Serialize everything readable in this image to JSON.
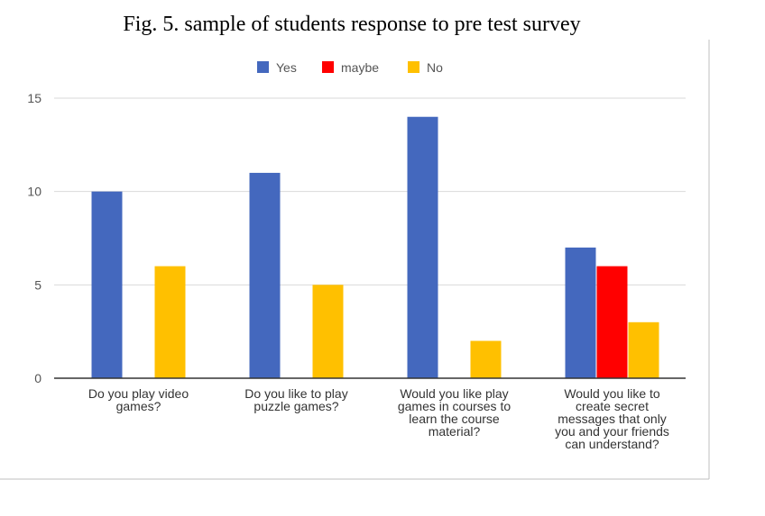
{
  "caption": "Fig. 5.  sample of students response to pre test survey",
  "colors": {
    "Yes": "#4468be",
    "maybe": "#ff0000",
    "No": "#ffc000",
    "grid": "#d9d9d9",
    "axis": "#333333"
  },
  "chart_data": {
    "type": "bar",
    "title": "",
    "xlabel": "",
    "ylabel": "",
    "ylim": [
      0,
      15
    ],
    "yticks": [
      0,
      5,
      10,
      15
    ],
    "grid": true,
    "legend_position": "top",
    "categories": [
      [
        "Do you play video",
        "games?"
      ],
      [
        "Do you like to play",
        "puzzle games?"
      ],
      [
        "Would you like play",
        "games in courses to",
        "learn the course",
        "material?"
      ],
      [
        "Would you like to",
        "create secret",
        "messages that only",
        "you and your friends",
        "can understand?"
      ]
    ],
    "series": [
      {
        "name": "Yes",
        "values": [
          10,
          11,
          14,
          7
        ]
      },
      {
        "name": "maybe",
        "values": [
          0,
          0,
          0,
          6
        ]
      },
      {
        "name": "No",
        "values": [
          6,
          5,
          2,
          3
        ]
      }
    ]
  }
}
